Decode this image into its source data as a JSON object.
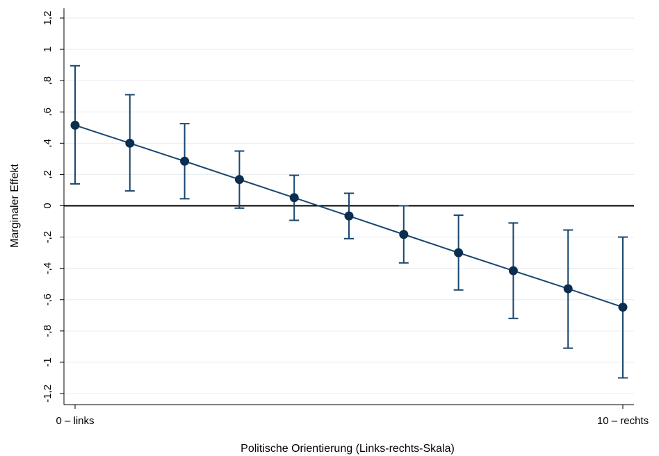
{
  "chart_data": {
    "type": "line",
    "title": "",
    "xlabel": "Politische Orientierung (Links-rechts-Skala)",
    "ylabel": "Marginaler Effekt",
    "x": [
      0,
      1,
      2,
      3,
      4,
      5,
      6,
      7,
      8,
      9,
      10
    ],
    "xlim": [
      0,
      10
    ],
    "x_ticks": [
      {
        "value": 0,
        "label": "0 – links"
      },
      {
        "value": 10,
        "label": "10 – rechts"
      }
    ],
    "ylim": [
      -1.2,
      1.2
    ],
    "y_ticks": [
      {
        "value": 1.2,
        "label": "1,2"
      },
      {
        "value": 1.0,
        "label": "1"
      },
      {
        "value": 0.8,
        "label": ",8"
      },
      {
        "value": 0.6,
        "label": ",6"
      },
      {
        "value": 0.4,
        "label": ",4"
      },
      {
        "value": 0.2,
        "label": ",2"
      },
      {
        "value": 0.0,
        "label": "0"
      },
      {
        "value": -0.2,
        "label": "-,2"
      },
      {
        "value": -0.4,
        "label": "-,4"
      },
      {
        "value": -0.6,
        "label": "-,6"
      },
      {
        "value": -0.8,
        "label": "-,8"
      },
      {
        "value": -1.0,
        "label": "-1"
      },
      {
        "value": -1.2,
        "label": "-1,2"
      }
    ],
    "series": [
      {
        "values": [
          0.515,
          0.4,
          0.285,
          0.168,
          0.052,
          -0.065,
          -0.183,
          -0.3,
          -0.415,
          -0.53,
          -0.648
        ],
        "ci_upper": [
          0.895,
          0.71,
          0.525,
          0.35,
          0.195,
          0.08,
          0.0,
          -0.06,
          -0.11,
          -0.155,
          -0.2
        ],
        "ci_lower": [
          0.14,
          0.095,
          0.045,
          -0.015,
          -0.093,
          -0.21,
          -0.365,
          -0.538,
          -0.72,
          -0.91,
          -1.1
        ]
      }
    ],
    "reference_line": 0,
    "grid": true,
    "legend": "none",
    "colors": {
      "series": "#1a476f",
      "marker": "#0a2d50",
      "grid": "#e6ecf0",
      "axis": "#000000"
    }
  }
}
